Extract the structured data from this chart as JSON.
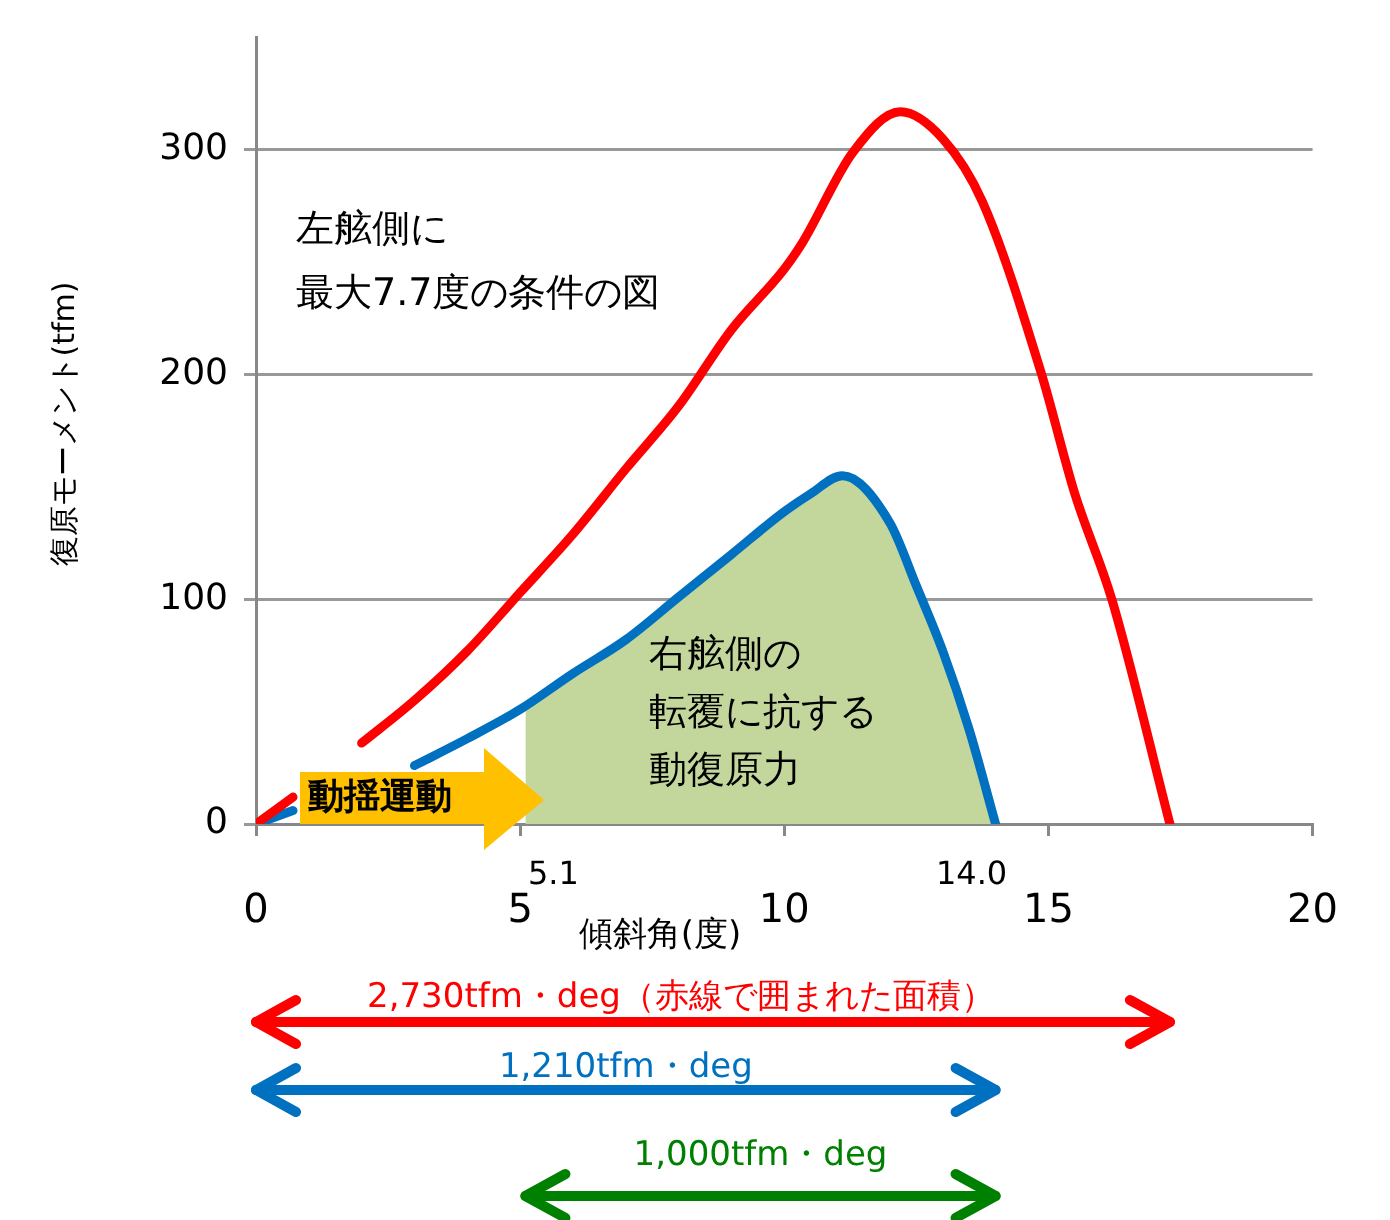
{
  "chart_data": {
    "type": "line",
    "ylabel": "復原モーメント(tfm)",
    "xlabel": "傾斜角(度)",
    "series": [
      {
        "color": "#ff0000",
        "x": [
          0,
          0.7,
          1,
          2,
          3,
          4,
          5,
          6,
          7,
          8,
          9,
          10,
          10.35,
          11.3,
          12.2,
          13,
          13.75,
          14.86,
          15.5,
          16.2,
          17.3
        ],
        "values": [
          0,
          12,
          null,
          36,
          55,
          77,
          103,
          129,
          158,
          186,
          220,
          247,
          259,
          299,
          317,
          305,
          277,
          201,
          147,
          100,
          0
        ]
      },
      {
        "color": "#0070c0",
        "x": [
          0,
          0.7,
          1,
          2,
          3,
          4,
          5,
          6,
          7,
          8,
          9,
          10,
          10.5,
          11.1,
          12,
          12.5,
          13,
          13.5,
          14
        ],
        "values": [
          0,
          6,
          null,
          null,
          26,
          38,
          51,
          67,
          82,
          101,
          120,
          139,
          147,
          155,
          134,
          106,
          77,
          42,
          0
        ]
      },
      {
        "type": "area",
        "color": "#c3d69b",
        "x": [
          5.1,
          6,
          7,
          8,
          9,
          10,
          10.5,
          11.1,
          12,
          12.5,
          13,
          13.5,
          14
        ],
        "values": [
          53,
          67,
          82,
          101,
          120,
          139,
          147,
          155,
          134,
          106,
          77,
          42,
          0
        ]
      }
    ],
    "xlim": [
      0,
      20
    ],
    "xticks": [
      0,
      5,
      10,
      15,
      20
    ],
    "ylim": [
      0,
      350
    ],
    "yticks": [
      0,
      100,
      200,
      300
    ],
    "grid": "y",
    "marker": "none",
    "line_style": "solid",
    "annotations": [
      "左舷側に",
      "最大7.7度の条件の図",
      "動揺運動",
      "右舷側の",
      "転覆に抗する",
      "動復原力",
      "5.1",
      "14.0",
      "2,730tfm・deg（赤線で囲まれた面積）",
      "1,210tfm・deg",
      "1,000tfm・deg"
    ]
  }
}
